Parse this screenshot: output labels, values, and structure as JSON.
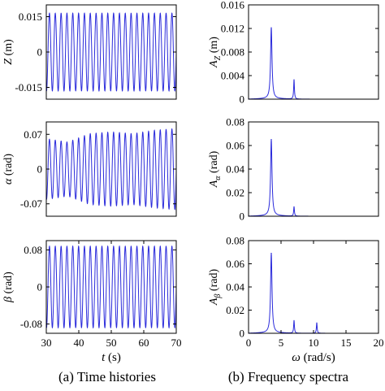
{
  "captions": {
    "left": "(a) Time histories",
    "right": "(b) Frequency spectra"
  },
  "colors": {
    "trace": "#2a2adb",
    "axis": "#000000"
  },
  "chart_data": [
    {
      "type": "line",
      "panel": "time-Z",
      "ylabel": "Z (m)",
      "xlabel": "",
      "xlim": [
        30,
        70
      ],
      "ylim": [
        -0.02,
        0.02
      ],
      "yticks": [
        "0.015",
        "0",
        "-0.015"
      ],
      "ytick_values": [
        0.015,
        0,
        -0.015
      ],
      "xticks": [],
      "series": [
        {
          "amplitude": 0.0165,
          "frequency_rad_s": 3.5,
          "envelope": [
            1.0,
            1.0
          ]
        }
      ]
    },
    {
      "type": "line",
      "panel": "time-alpha",
      "ylabel": "α (rad)",
      "xlabel": "",
      "xlim": [
        30,
        70
      ],
      "ylim": [
        -0.095,
        0.095
      ],
      "yticks": [
        "0.07",
        "0",
        "-0.07"
      ],
      "ytick_values": [
        0.07,
        0,
        -0.07
      ],
      "xticks": [],
      "series": [
        {
          "amplitude": 0.068,
          "frequency_rad_s": 3.5,
          "envelope": [
            0.9,
            0.8,
            1.05,
            1.1,
            1.05,
            1.15,
            1.2
          ]
        }
      ]
    },
    {
      "type": "line",
      "panel": "time-beta",
      "ylabel": "β (rad)",
      "xlabel": "t (s)",
      "xlim": [
        30,
        70
      ],
      "ylim": [
        -0.1,
        0.1
      ],
      "yticks": [
        "0.08",
        "0",
        "-0.08"
      ],
      "ytick_values": [
        0.08,
        0,
        -0.08
      ],
      "xticks": [
        "30",
        "40",
        "50",
        "60",
        "70"
      ],
      "xtick_values": [
        30,
        40,
        50,
        60,
        70
      ],
      "series": [
        {
          "amplitude": 0.088,
          "frequency_rad_s": 3.5,
          "envelope": [
            1.0,
            1.0
          ]
        }
      ]
    },
    {
      "type": "line",
      "panel": "spectrum-Z",
      "ylabel": "A_Z (m)",
      "xlabel": "",
      "xlim": [
        0,
        20
      ],
      "ylim": [
        0,
        0.016
      ],
      "yticks": [
        "0.016",
        "0.012",
        "0.008",
        "0.004",
        "0"
      ],
      "ytick_values": [
        0.016,
        0.012,
        0.008,
        0.004,
        0
      ],
      "xticks": [],
      "peaks": [
        {
          "x": 3.5,
          "y": 0.0121
        },
        {
          "x": 7.0,
          "y": 0.0033
        }
      ]
    },
    {
      "type": "line",
      "panel": "spectrum-alpha",
      "ylabel": "A_α (rad)",
      "xlabel": "",
      "xlim": [
        0,
        20
      ],
      "ylim": [
        0,
        0.08
      ],
      "yticks": [
        "0.08",
        "0.06",
        "0.04",
        "0.02",
        "0"
      ],
      "ytick_values": [
        0.08,
        0.06,
        0.04,
        0.02,
        0
      ],
      "xticks": [],
      "peaks": [
        {
          "x": 3.5,
          "y": 0.065
        },
        {
          "x": 7.0,
          "y": 0.008
        }
      ]
    },
    {
      "type": "line",
      "panel": "spectrum-beta",
      "ylabel": "A_β (rad)",
      "xlabel": "ω (rad/s)",
      "xlim": [
        0,
        20
      ],
      "ylim": [
        0,
        0.08
      ],
      "yticks": [
        "0.08",
        "0.06",
        "0.04",
        "0.02",
        "0"
      ],
      "ytick_values": [
        0.08,
        0.06,
        0.04,
        0.02,
        0
      ],
      "xticks": [
        "0",
        "5",
        "10",
        "15",
        "20"
      ],
      "xtick_values": [
        0,
        5,
        10,
        15,
        20
      ],
      "peaks": [
        {
          "x": 3.5,
          "y": 0.069
        },
        {
          "x": 7.0,
          "y": 0.011
        },
        {
          "x": 10.5,
          "y": 0.009
        }
      ]
    }
  ]
}
